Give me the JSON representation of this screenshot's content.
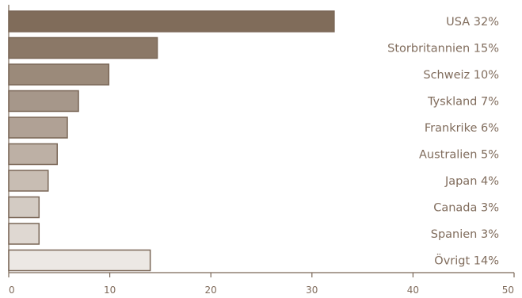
{
  "chart_data": {
    "type": "bar",
    "orientation": "horizontal",
    "categories": [
      "USA",
      "Storbritannien",
      "Schweiz",
      "Tyskland",
      "Frankrike",
      "Australien",
      "Japan",
      "Canada",
      "Spanien",
      "Övrigt"
    ],
    "bar_labels": [
      "USA 32%",
      "Storbritannien 15%",
      "Schweiz 10%",
      "Tyskland 7%",
      "Frankrike 6%",
      "Australien 5%",
      "Japan 4%",
      "Canada 3%",
      "Spanien 3%",
      "Övrigt 14%"
    ],
    "values": [
      32.2,
      14.7,
      9.9,
      6.9,
      5.8,
      4.8,
      3.9,
      3.0,
      3.0,
      14.0
    ],
    "colors": [
      "#806c5a",
      "#8b7867",
      "#9b8a7a",
      "#a6978a",
      "#b0a195",
      "#bdb0a5",
      "#c8bdb3",
      "#d3cbc3",
      "#dfd8d2",
      "#ece8e4"
    ],
    "xlim": [
      0,
      50
    ],
    "xticks": [
      0,
      10,
      20,
      30,
      40,
      50
    ],
    "title": "",
    "xlabel": "",
    "ylabel": "",
    "legend": "none",
    "grid": false
  }
}
